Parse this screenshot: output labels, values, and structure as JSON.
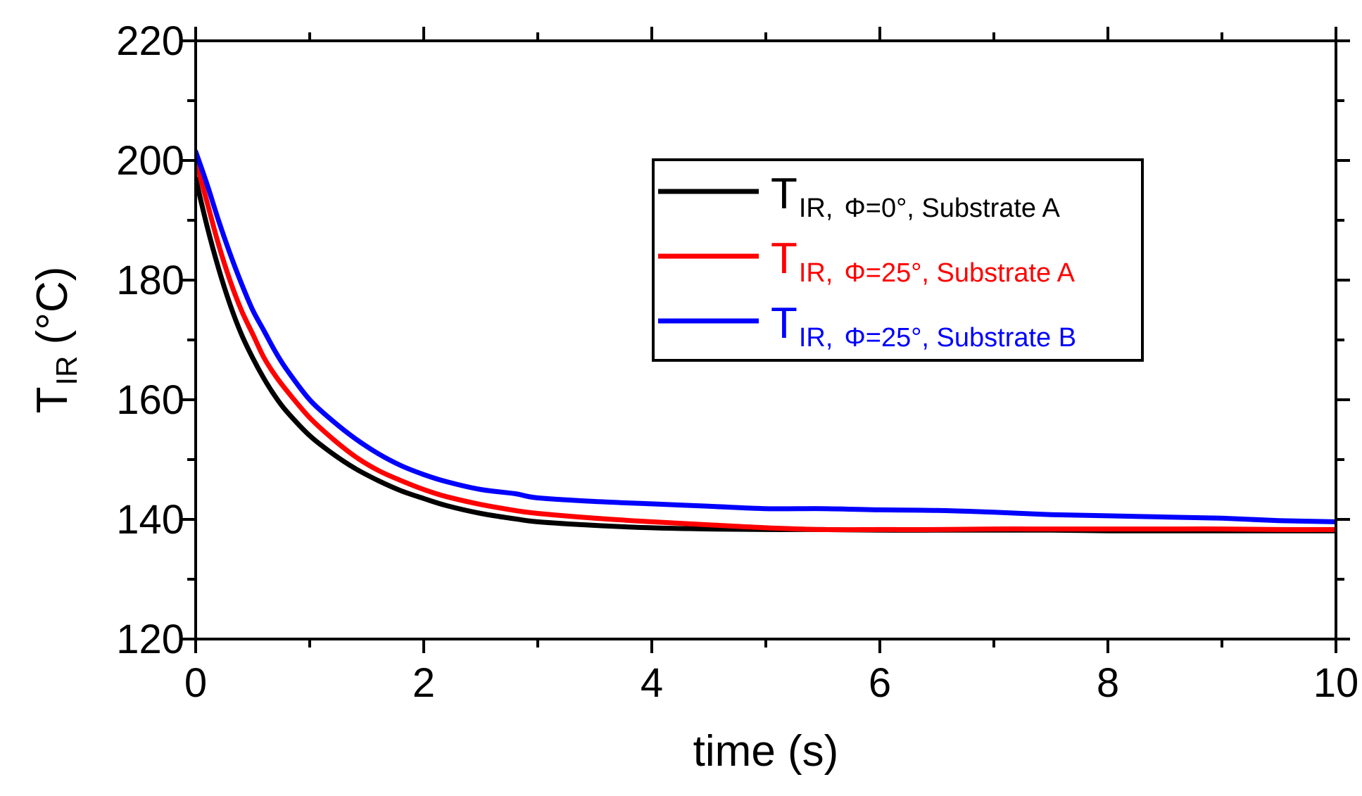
{
  "chart_data": {
    "type": "line",
    "title": "",
    "xlabel": "time (s)",
    "ylabel": {
      "main": "T",
      "subscript": "IR",
      "unit": "(°C)"
    },
    "xlim": [
      0,
      10
    ],
    "ylim": [
      120,
      220
    ],
    "xticks": [
      0,
      2,
      4,
      6,
      8,
      10
    ],
    "yticks": [
      120,
      140,
      160,
      180,
      200,
      220
    ],
    "grid": false,
    "legend_position": "top-right",
    "series": [
      {
        "name": "T_IR, Φ=0°, Substrate A",
        "legend": {
          "main": "T",
          "sub": "IR,",
          "rest": "Φ=0°, Substrate A"
        },
        "color": "#000000",
        "x": [
          0,
          0.1,
          0.2,
          0.3,
          0.4,
          0.5,
          0.6,
          0.7,
          0.8,
          1.0,
          1.2,
          1.4,
          1.6,
          1.8,
          2.0,
          2.2,
          2.5,
          2.8,
          3.0,
          3.5,
          4.0,
          4.5,
          5.0,
          5.5,
          6.0,
          6.5,
          7.0,
          7.5,
          8.0,
          8.5,
          9.0,
          9.5,
          10.0
        ],
        "y": [
          197,
          189,
          182,
          176,
          171,
          167,
          163.5,
          160.5,
          158,
          154,
          151,
          148.5,
          146.5,
          144.8,
          143.5,
          142.3,
          141,
          140.1,
          139.6,
          139,
          138.6,
          138.4,
          138.3,
          138.3,
          138.2,
          138.2,
          138.2,
          138.2,
          138.1,
          138.1,
          138.1,
          138.1,
          138.1
        ]
      },
      {
        "name": "T_IR, Φ=25°, Substrate A",
        "legend": {
          "main": "T",
          "sub": "IR,",
          "rest": "Φ=25°, Substrate A"
        },
        "color": "#ff0000",
        "x": [
          0,
          0.1,
          0.2,
          0.3,
          0.4,
          0.5,
          0.6,
          0.7,
          0.8,
          1.0,
          1.2,
          1.4,
          1.6,
          1.8,
          2.0,
          2.2,
          2.5,
          2.8,
          3.0,
          3.5,
          4.0,
          4.5,
          5.0,
          5.5,
          6.0,
          6.5,
          7.0,
          7.5,
          8.0,
          8.5,
          9.0,
          9.5,
          10.0
        ],
        "y": [
          200,
          193,
          186,
          180,
          175,
          171,
          167,
          164,
          161.5,
          157,
          153.5,
          150.5,
          148.2,
          146.5,
          145,
          143.8,
          142.5,
          141.5,
          141,
          140.2,
          139.6,
          139.1,
          138.6,
          138.3,
          138.3,
          138.3,
          138.4,
          138.4,
          138.4,
          138.4,
          138.4,
          138.3,
          138.3
        ]
      },
      {
        "name": "T_IR, Φ=25°, Substrate B",
        "legend": {
          "main": "T",
          "sub": "IR,",
          "rest": "Φ=25°, Substrate B"
        },
        "color": "#0000ff",
        "x": [
          0,
          0.1,
          0.2,
          0.3,
          0.4,
          0.5,
          0.6,
          0.7,
          0.8,
          1.0,
          1.2,
          1.4,
          1.6,
          1.8,
          2.0,
          2.2,
          2.5,
          2.8,
          3.0,
          3.5,
          4.0,
          4.5,
          5.0,
          5.5,
          6.0,
          6.5,
          7.0,
          7.5,
          8.0,
          8.5,
          9.0,
          9.5,
          10.0
        ],
        "y": [
          201.5,
          196,
          190,
          184.5,
          179.5,
          175,
          171.5,
          168,
          165,
          160,
          156.5,
          153.5,
          151,
          149,
          147.5,
          146.3,
          145,
          144.3,
          143.6,
          143,
          142.6,
          142.2,
          141.8,
          141.8,
          141.6,
          141.5,
          141.2,
          140.8,
          140.6,
          140.4,
          140.2,
          139.8,
          139.6
        ]
      }
    ]
  }
}
